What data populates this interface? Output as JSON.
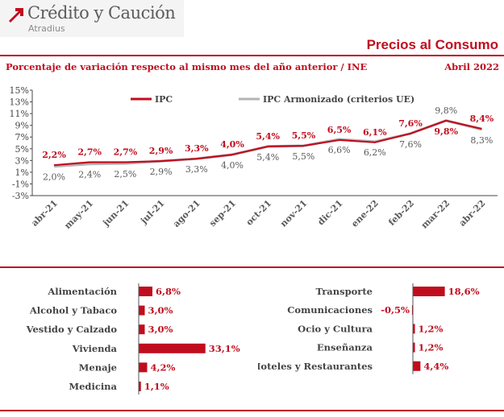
{
  "header": {
    "brand_name": "Crédito y Caución",
    "brand_sub": "Atradius",
    "report_title": "Precios al Consumo",
    "subtitle": "Porcentaje de variación respecto al mismo mes del año anterior / INE",
    "period": "Abril  2022"
  },
  "colors": {
    "accent": "#c00d1e",
    "ipc": "#c00d1e",
    "ipca": "#b4b4b4",
    "text_gray": "#5a5a5a"
  },
  "chart_data": [
    {
      "type": "line",
      "x": [
        "abr-21",
        "may-21",
        "jun-21",
        "jul-21",
        "ago-21",
        "sep-21",
        "oct-21",
        "nov-21",
        "dic-21",
        "ene-22",
        "feb-22",
        "mar-22",
        "abr-22"
      ],
      "y_tick_labels": [
        "15%",
        "13%",
        "11%",
        "9%",
        "7%",
        "5%",
        "3%",
        "1%",
        "-1%",
        "-3%"
      ],
      "ylim": [
        -3,
        15
      ],
      "series": [
        {
          "name": "IPC",
          "values": [
            2.2,
            2.7,
            2.7,
            2.9,
            3.3,
            4.0,
            5.4,
            5.5,
            6.5,
            6.1,
            7.6,
            9.8,
            8.4
          ],
          "labels": [
            "2,2%",
            "2,7%",
            "2,7%",
            "2,9%",
            "3,3%",
            "4,0%",
            "5,4%",
            "5,5%",
            "6,5%",
            "6,1%",
            "7,6%",
            "9,8%",
            "8,4%"
          ]
        },
        {
          "name": "IPC Armonizado (criterios UE)",
          "values": [
            2.0,
            2.4,
            2.5,
            2.9,
            3.3,
            4.0,
            5.4,
            5.5,
            6.6,
            6.2,
            7.6,
            9.8,
            8.3
          ],
          "labels": [
            "2,0%",
            "2,4%",
            "2,5%",
            "2,9%",
            "3,3%",
            "4,0%",
            "5,4%",
            "5,5%",
            "6,6%",
            "6,2%",
            "7,6%",
            "9,8%",
            "8,3%"
          ]
        }
      ],
      "legend": "top"
    },
    {
      "type": "bar",
      "categories": [
        "Alimentación",
        "Alcohol y Tabaco",
        "Vestido y Calzado",
        "Vivienda",
        "Menaje",
        "Medicina"
      ],
      "values": [
        6.8,
        3.0,
        3.0,
        33.1,
        4.2,
        1.1
      ],
      "labels": [
        "6,8%",
        "3,0%",
        "3,0%",
        "33,1%",
        "4,2%",
        "1,1%"
      ]
    },
    {
      "type": "bar",
      "categories": [
        "Transporte",
        "Comunicaciones",
        "Ocio y Cultura",
        "Enseñanza",
        "Hoteles y Restaurantes"
      ],
      "values": [
        18.6,
        -0.5,
        1.2,
        1.2,
        4.4
      ],
      "labels": [
        "18,6%",
        "-0,5%",
        "1,2%",
        "1,2%",
        "4,4%"
      ]
    }
  ]
}
